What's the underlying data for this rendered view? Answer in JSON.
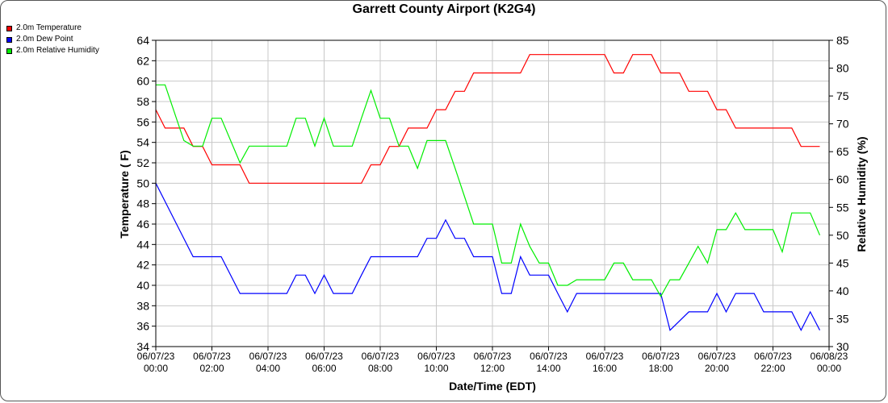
{
  "chart_data": {
    "type": "line",
    "title": "Garrett County Airport (K2G4)",
    "xlabel": "Date/Time (EDT)",
    "ylabel_left": "Temperature ( F)",
    "ylabel_right": "Relative Humidity (%)",
    "grid": true,
    "legend_position": "top-left",
    "x_range_hours": [
      0,
      24
    ],
    "ylim_left": [
      34,
      64
    ],
    "ylim_right": [
      30,
      85
    ],
    "yticks_left": [
      "34",
      "36",
      "38",
      "40",
      "42",
      "44",
      "46",
      "48",
      "50",
      "52",
      "54",
      "56",
      "58",
      "60",
      "62",
      "64"
    ],
    "yticks_right": [
      "30",
      "35",
      "40",
      "45",
      "50",
      "55",
      "60",
      "65",
      "70",
      "75",
      "80",
      "85"
    ],
    "xticks": [
      {
        "date": "06/07/23",
        "time": "00:00"
      },
      {
        "date": "06/07/23",
        "time": "02:00"
      },
      {
        "date": "06/07/23",
        "time": "04:00"
      },
      {
        "date": "06/07/23",
        "time": "06:00"
      },
      {
        "date": "06/07/23",
        "time": "08:00"
      },
      {
        "date": "06/07/23",
        "time": "10:00"
      },
      {
        "date": "06/07/23",
        "time": "12:00"
      },
      {
        "date": "06/07/23",
        "time": "14:00"
      },
      {
        "date": "06/07/23",
        "time": "16:00"
      },
      {
        "date": "06/07/23",
        "time": "18:00"
      },
      {
        "date": "06/07/23",
        "time": "20:00"
      },
      {
        "date": "06/07/23",
        "time": "22:00"
      },
      {
        "date": "06/08/23",
        "time": "00:00"
      }
    ],
    "series": [
      {
        "name": "2.0m Temperature",
        "color": "#ff0000",
        "axis": "left",
        "x": [
          0,
          0.33,
          1.0,
          1.33,
          1.67,
          2.0,
          2.33,
          3.0,
          3.33,
          4.0,
          4.33,
          5.0,
          5.33,
          6.0,
          6.33,
          7.0,
          7.33,
          7.67,
          8.0,
          8.33,
          8.67,
          9.0,
          9.33,
          9.67,
          10.0,
          10.33,
          10.67,
          11.0,
          11.33,
          11.67,
          12.0,
          12.33,
          12.67,
          13.0,
          13.33,
          13.67,
          14.0,
          14.33,
          14.67,
          15.0,
          15.33,
          15.67,
          16.0,
          16.33,
          16.67,
          17.0,
          17.33,
          17.67,
          18.0,
          18.33,
          18.67,
          19.0,
          19.33,
          19.67,
          20.0,
          20.33,
          20.67,
          21.0,
          21.33,
          21.67,
          22.0,
          22.33,
          22.67,
          23.0,
          23.33,
          23.67
        ],
        "values": [
          57.2,
          55.4,
          55.4,
          53.6,
          53.6,
          51.8,
          51.8,
          51.8,
          50.0,
          50.0,
          50.0,
          50.0,
          50.0,
          50.0,
          50.0,
          50.0,
          50.0,
          51.8,
          51.8,
          53.6,
          53.6,
          55.4,
          55.4,
          55.4,
          57.2,
          57.2,
          59.0,
          59.0,
          60.8,
          60.8,
          60.8,
          60.8,
          60.8,
          60.8,
          62.6,
          62.6,
          62.6,
          62.6,
          62.6,
          62.6,
          62.6,
          62.6,
          62.6,
          60.8,
          60.8,
          62.6,
          62.6,
          62.6,
          60.8,
          60.8,
          60.8,
          59.0,
          59.0,
          59.0,
          57.2,
          57.2,
          55.4,
          55.4,
          55.4,
          55.4,
          55.4,
          55.4,
          55.4,
          53.6,
          53.6,
          53.6
        ]
      },
      {
        "name": "2.0m Dew Point",
        "color": "#0000ff",
        "axis": "left",
        "x": [
          0,
          1.33,
          1.67,
          2.0,
          2.33,
          3.0,
          3.33,
          4.0,
          4.33,
          4.67,
          5.0,
          5.33,
          5.67,
          6.0,
          6.33,
          6.67,
          7.0,
          7.33,
          7.67,
          8.0,
          8.33,
          8.67,
          9.0,
          9.33,
          9.67,
          10.0,
          10.33,
          10.67,
          11.0,
          11.33,
          11.67,
          12.0,
          12.33,
          12.67,
          13.0,
          13.33,
          13.67,
          14.0,
          14.33,
          14.67,
          15.0,
          15.33,
          16.0,
          16.33,
          17.0,
          17.33,
          17.67,
          18.0,
          18.33,
          19.0,
          19.33,
          19.67,
          20.0,
          20.33,
          20.67,
          21.0,
          21.33,
          21.67,
          22.0,
          22.33,
          22.67,
          23.0,
          23.33,
          23.67
        ],
        "values": [
          50.0,
          42.8,
          42.8,
          42.8,
          42.8,
          39.2,
          39.2,
          39.2,
          39.2,
          39.2,
          41.0,
          41.0,
          39.2,
          41.0,
          39.2,
          39.2,
          39.2,
          41.0,
          42.8,
          42.8,
          42.8,
          42.8,
          42.8,
          42.8,
          44.6,
          44.6,
          46.4,
          44.6,
          44.6,
          42.8,
          42.8,
          42.8,
          39.2,
          39.2,
          42.8,
          41.0,
          41.0,
          41.0,
          39.2,
          37.4,
          39.2,
          39.2,
          39.2,
          39.2,
          39.2,
          39.2,
          39.2,
          39.2,
          35.6,
          37.4,
          37.4,
          37.4,
          39.2,
          37.4,
          39.2,
          39.2,
          39.2,
          37.4,
          37.4,
          37.4,
          37.4,
          35.6,
          37.4,
          35.6
        ]
      },
      {
        "name": "2.0m Relative Humidity",
        "color": "#00ee00",
        "axis": "right",
        "x": [
          0,
          0.33,
          1.0,
          1.33,
          1.67,
          2.0,
          2.33,
          3.0,
          3.33,
          4.0,
          4.33,
          4.67,
          5.0,
          5.33,
          5.67,
          6.0,
          6.33,
          6.67,
          7.0,
          7.33,
          7.67,
          8.0,
          8.33,
          8.67,
          9.0,
          9.33,
          9.67,
          10.0,
          10.33,
          10.67,
          11.0,
          11.33,
          11.67,
          12.0,
          12.33,
          12.67,
          13.0,
          13.33,
          13.67,
          14.0,
          14.33,
          14.67,
          15.0,
          15.33,
          16.0,
          16.33,
          16.67,
          17.0,
          17.33,
          17.67,
          18.0,
          18.33,
          18.67,
          19.0,
          19.33,
          19.67,
          20.0,
          20.33,
          20.67,
          21.0,
          21.33,
          21.67,
          22.0,
          22.33,
          22.67,
          23.0,
          23.33,
          23.67
        ],
        "values": [
          77,
          77,
          67,
          66,
          66,
          71,
          71,
          63,
          66,
          66,
          66,
          66,
          71,
          71,
          66,
          71,
          66,
          66,
          66,
          71,
          76,
          71,
          71,
          66,
          66,
          62,
          67,
          67,
          67,
          62,
          57,
          52,
          52,
          52,
          45,
          45,
          52,
          48,
          45,
          45,
          41,
          41,
          42,
          42,
          42,
          45,
          45,
          42,
          42,
          42,
          39,
          42,
          42,
          45,
          48,
          45,
          51,
          51,
          54,
          51,
          51,
          51,
          51,
          47,
          54,
          54,
          54,
          50
        ]
      }
    ]
  }
}
